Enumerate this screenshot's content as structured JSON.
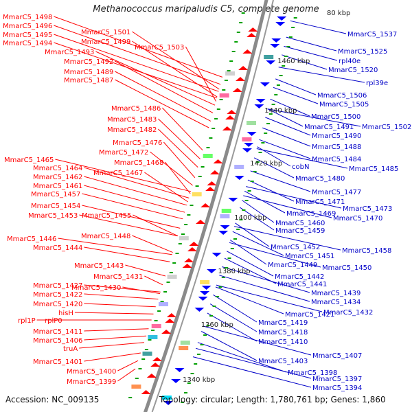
{
  "title": "Methanococcus maripaludis C5, complete genome",
  "footer": {
    "accession": "Accession: NC_009135",
    "topology": "Topology: circular; Length: 1,780,761 bp; Genes: 1,860"
  },
  "colors": {
    "left_label": "#ff0000",
    "right_label": "#0000c8",
    "backbone": "#8a8a8a",
    "tick": "#00a000",
    "forward_gene": "#ff0000",
    "reverse_gene": "#0000ff"
  },
  "scale_ticks": [
    "80 kbp",
    "1460 kbp",
    "1440 kbp",
    "1420 kbp",
    "1400 kbp",
    "1380 kbp",
    "1360 kbp",
    "1340 kbp"
  ],
  "left_labels": [
    "MmarC5_1498",
    "MmarC5_1496",
    "MmarC5_1495",
    "MmarC5_1494",
    "MmarC5_1501",
    "MmarC5_1499",
    "MmarC5_1503",
    "MmarC5_1493",
    "MmarC5_1492",
    "MmarC5_1489",
    "MmarC5_1487",
    "MmarC5_1486",
    "MmarC5_1483",
    "MmarC5_1482",
    "MmarC5_1476",
    "MmarC5_1472",
    "MmarC5_1465",
    "MmarC5_1468",
    "MmarC5_1464",
    "MmarC5_1467",
    "MmarC5_1462",
    "MmarC5_1461",
    "MmarC5_1457",
    "MmarC5_1454",
    "MmarC5_1453",
    "MmarC5_1455",
    "MmarC5_1446",
    "MmarC5_1448",
    "MmarC5_1444",
    "MmarC5_1443",
    "MmarC5_1431",
    "MmarC5_1427",
    "MmarC5_1430",
    "MmarC5_1422",
    "MmarC5_1420",
    "hisH",
    "rpl1P",
    "rplP0",
    "MmarC5_1411",
    "MmarC5_1406",
    "truA",
    "MmarC5_1401",
    "MmarC5_1400",
    "MmarC5_1399"
  ],
  "right_labels": [
    "MmarC5_1537",
    "MmarC5_1525",
    "rpl40e",
    "MmarC5_1520",
    "rpl39e",
    "MmarC5_1506",
    "MmarC5_1505",
    "MmarC5_1500",
    "MmarC5_1491",
    "MmarC5_1502",
    "MmarC5_1490",
    "MmarC5_1488",
    "MmarC5_1484",
    "cobN",
    "MmarC5_1485",
    "MmarC5_1480",
    "MmarC5_1477",
    "MmarC5_1471",
    "MmarC5_1473",
    "MmarC5_1469",
    "MmarC5_1470",
    "MmarC5_1460",
    "MmarC5_1459",
    "MmarC5_1452",
    "MmarC5_1458",
    "MmarC5_1451",
    "MmarC5_1449",
    "MmarC5_1450",
    "MmarC5_1442",
    "MmarC5_1441",
    "MmarC5_1439",
    "MmarC5_1434",
    "MmarC5_1421",
    "MmarC5_1432",
    "MmarC5_1419",
    "MmarC5_1418",
    "MmarC5_1410",
    "MmarC5_1407",
    "MmarC5_1403",
    "MmarC5_1398",
    "MmarC5_1397",
    "MmarC5_1394"
  ]
}
